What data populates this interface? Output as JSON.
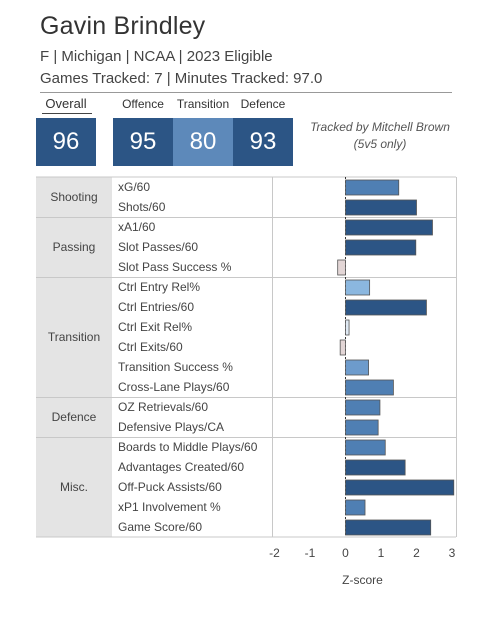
{
  "player": {
    "name": "Gavin Brindley",
    "meta": "F | Michigan | NCAA | 2023 Eligible",
    "tracked": "Games Tracked: 7 | Minutes Tracked: 97.0"
  },
  "ratings": {
    "overall_label": "Overall",
    "overall": "96",
    "offence_label": "Offence",
    "offence": "95",
    "transition_label": "Transition",
    "transition": "80",
    "defence_label": "Defence",
    "defence": "93"
  },
  "tracker_note": {
    "line1": "Tracked by Mitchell Brown",
    "line2": "(5v5 only)"
  },
  "chart_data": {
    "type": "bar",
    "orientation": "horizontal",
    "xlabel": "Z-score",
    "xlim": [
      -2.3,
      3.05
    ],
    "xticks": [
      -2,
      -1,
      0,
      1,
      2,
      3
    ],
    "zero_line": "dotted",
    "groups": [
      {
        "name": "Shooting",
        "metrics": [
          {
            "label": "xG/60",
            "value": 1.5,
            "color": "#4f7fb3"
          },
          {
            "label": "Shots/60",
            "value": 2.0,
            "color": "#2c5585"
          }
        ]
      },
      {
        "name": "Passing",
        "metrics": [
          {
            "label": "xA1/60",
            "value": 2.45,
            "color": "#2c5585"
          },
          {
            "label": "Slot Passes/60",
            "value": 1.98,
            "color": "#2c5585"
          },
          {
            "label": "Slot Pass Success %",
            "value": -0.22,
            "color": "#e3d6d6"
          }
        ]
      },
      {
        "name": "Transition",
        "metrics": [
          {
            "label": "Ctrl Entry Rel%",
            "value": 0.68,
            "color": "#8bb7df"
          },
          {
            "label": "Ctrl Entries/60",
            "value": 2.28,
            "color": "#2c5585"
          },
          {
            "label": "Ctrl Exit Rel%",
            "value": 0.1,
            "color": "#dfe9f3"
          },
          {
            "label": "Ctrl Exits/60",
            "value": -0.15,
            "color": "#e3d6d6"
          },
          {
            "label": "Transition Success %",
            "value": 0.65,
            "color": "#6d9bcc"
          },
          {
            "label": "Cross-Lane Plays/60",
            "value": 1.35,
            "color": "#4f7fb3"
          }
        ]
      },
      {
        "name": "Defence",
        "metrics": [
          {
            "label": "OZ Retrievals/60",
            "value": 0.97,
            "color": "#4f7fb3"
          },
          {
            "label": "Defensive Plays/CA",
            "value": 0.92,
            "color": "#4f7fb3"
          }
        ]
      },
      {
        "name": "Misc.",
        "metrics": [
          {
            "label": "Boards to Middle Plays/60",
            "value": 1.12,
            "color": "#4f7fb3"
          },
          {
            "label": "Advantages Created/60",
            "value": 1.68,
            "color": "#2c5585"
          },
          {
            "label": "Off-Puck Assists/60",
            "value": 3.05,
            "color": "#2c5585"
          },
          {
            "label": "xP1 Involvement %",
            "value": 0.55,
            "color": "#4f7fb3"
          },
          {
            "label": "Game Score/60",
            "value": 2.4,
            "color": "#2c5585"
          }
        ]
      }
    ]
  }
}
